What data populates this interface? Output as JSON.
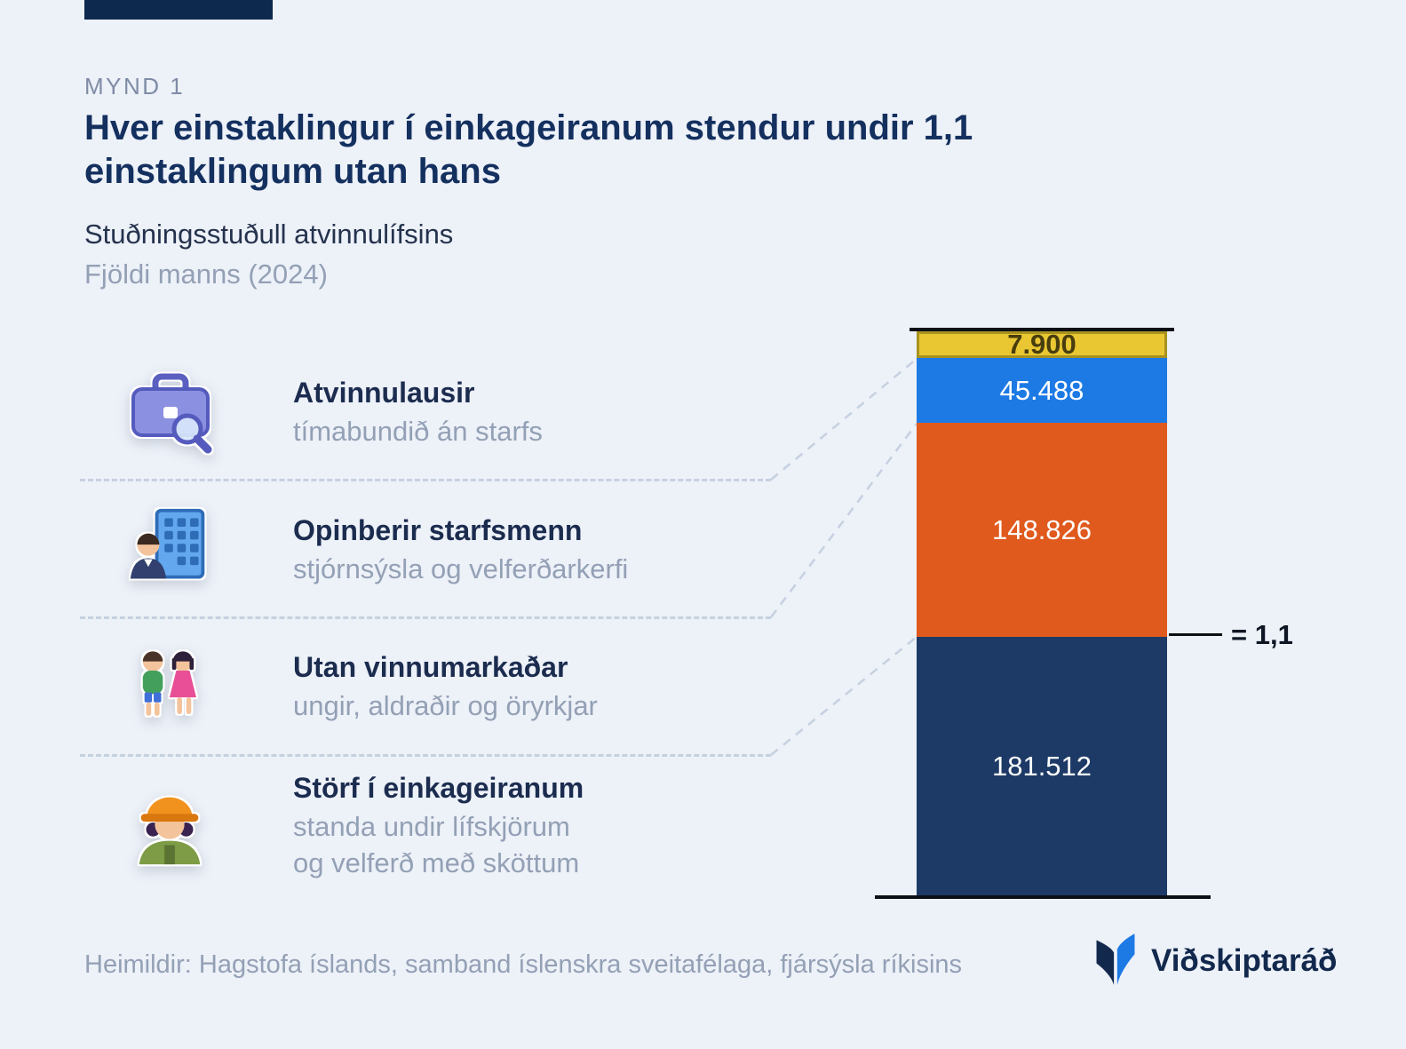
{
  "header": {
    "figure_label": "MYND 1",
    "title": "Hver einstaklingur í einkageiranum stendur undir 1,1\neinstaklingum utan hans",
    "subtitle": "Stuðningsstuðull atvinnulífsins",
    "unit_label": "Fjöldi manns (2024)"
  },
  "legend": [
    {
      "label": "Atvinnulausir",
      "description": "tímabundið án starfs",
      "icon": "briefcase-search-icon"
    },
    {
      "label": "Opinberir starfsmenn",
      "description": "stjórnsýsla og velferðarkerfi",
      "icon": "office-worker-building-icon"
    },
    {
      "label": "Utan vinnumarkaðar",
      "description": "ungir, aldraðir og öryrkjar",
      "icon": "two-people-icon"
    },
    {
      "label": "Störf í einkageiranum",
      "description": "standa undir lífskjörum\nog velferð með sköttum",
      "icon": "construction-worker-icon"
    }
  ],
  "chart_data": {
    "type": "bar",
    "stacked": true,
    "title": "Stuðningsstuðull atvinnulífsins",
    "unit": "Fjöldi manns (2024)",
    "categories": [
      "Atvinnulausir",
      "Opinberir starfsmenn",
      "Utan vinnumarkaðar",
      "Störf í einkageiranum"
    ],
    "segments": [
      {
        "name": "Atvinnulausir",
        "value": 7900,
        "label": "7.900",
        "color": "#e9c733",
        "text_color": "#473d0e"
      },
      {
        "name": "Opinberir starfsmenn",
        "value": 45488,
        "label": "45.488",
        "color": "#1d7ae5",
        "text_color": "#ffffff"
      },
      {
        "name": "Utan vinnumarkaðar",
        "value": 148826,
        "label": "148.826",
        "color": "#e0591d",
        "text_color": "#ffffff"
      },
      {
        "name": "Störf í einkageiranum",
        "value": 181512,
        "label": "181.512",
        "color": "#1d3a66",
        "text_color": "#ffffff"
      }
    ],
    "annotation": {
      "label": "= 1,1",
      "at_boundary_between": [
        "Utan vinnumarkaðar",
        "Störf í einkageiranum"
      ]
    }
  },
  "footer": {
    "sources": "Heimildir: Hagstofa íslands, samband íslenskra sveitafélaga, fjársýsla ríkisins",
    "brand_name": "Viðskiptaráð"
  },
  "colors": {
    "background": "#edf1f8",
    "title_navy": "#14305f",
    "muted_text": "#93a0b5",
    "accent_yellow": "#e9c733",
    "accent_blue": "#1d7ae5",
    "accent_orange": "#e0591d",
    "accent_navy": "#1d3a66",
    "dashed_line": "#c6d1e0"
  }
}
